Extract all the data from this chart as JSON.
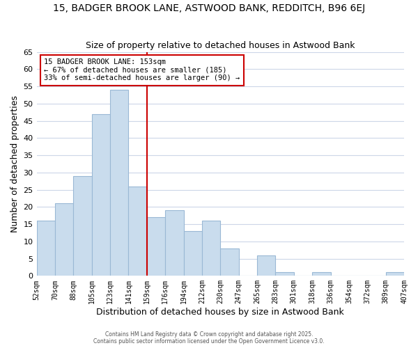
{
  "title": "15, BADGER BROOK LANE, ASTWOOD BANK, REDDITCH, B96 6EJ",
  "subtitle": "Size of property relative to detached houses in Astwood Bank",
  "xlabel": "Distribution of detached houses by size in Astwood Bank",
  "ylabel": "Number of detached properties",
  "tick_labels": [
    "52sqm",
    "70sqm",
    "88sqm",
    "105sqm",
    "123sqm",
    "141sqm",
    "159sqm",
    "176sqm",
    "194sqm",
    "212sqm",
    "230sqm",
    "247sqm",
    "265sqm",
    "283sqm",
    "301sqm",
    "318sqm",
    "336sqm",
    "354sqm",
    "372sqm",
    "389sqm",
    "407sqm"
  ],
  "values": [
    16,
    21,
    29,
    47,
    54,
    26,
    17,
    19,
    13,
    16,
    8,
    0,
    6,
    1,
    0,
    1,
    0,
    0,
    0,
    1
  ],
  "bar_color": "#c9dced",
  "bar_edge_color": "#9ab8d5",
  "ylim": [
    0,
    65
  ],
  "yticks": [
    0,
    5,
    10,
    15,
    20,
    25,
    30,
    35,
    40,
    45,
    50,
    55,
    60,
    65
  ],
  "property_line_color": "#cc0000",
  "property_line_x": 5.5,
  "legend_title": "15 BADGER BROOK LANE: 153sqm",
  "legend_line1": "← 67% of detached houses are smaller (185)",
  "legend_line2": "33% of semi-detached houses are larger (90) →",
  "legend_box_color": "#cc0000",
  "background_color": "#ffffff",
  "grid_color": "#ccd6e8",
  "footer1": "Contains HM Land Registry data © Crown copyright and database right 2025.",
  "footer2": "Contains public sector information licensed under the Open Government Licence v3.0."
}
